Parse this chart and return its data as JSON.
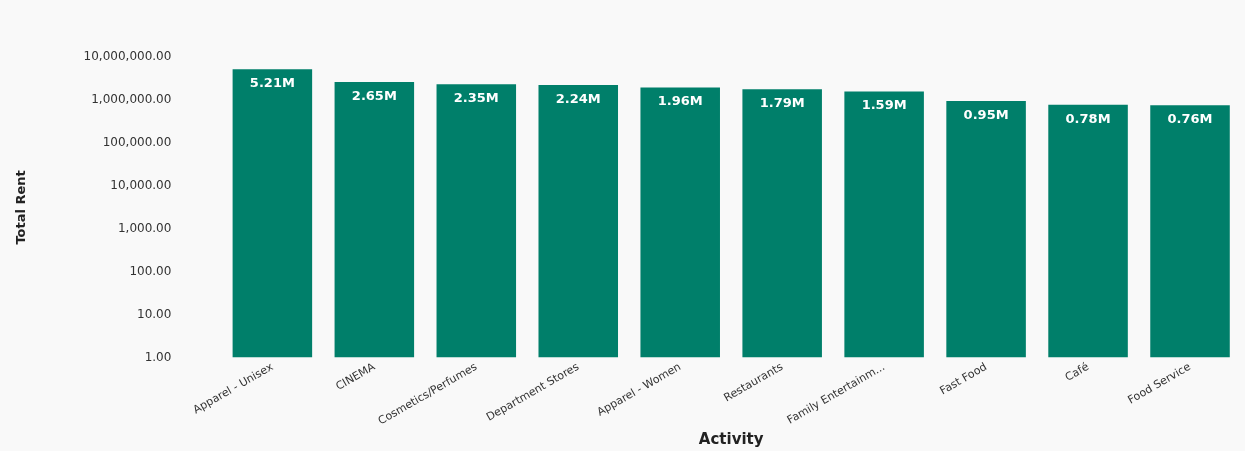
{
  "chart_data": {
    "type": "bar",
    "xlabel": "Activity",
    "ylabel": "Total Rent",
    "categories": [
      "Apparel - Unisex",
      "CINEMA",
      "Cosmetics/Perfumes",
      "Department Stores",
      "Apparel - Women",
      "Restaurants",
      "Family Entertainm...",
      "Fast Food",
      "Café",
      "Food Service"
    ],
    "values": [
      5210000,
      2650000,
      2350000,
      2240000,
      1960000,
      1790000,
      1590000,
      950000,
      780000,
      760000
    ],
    "value_labels": [
      "5.21M",
      "2.65M",
      "2.35M",
      "2.24M",
      "1.96M",
      "1.79M",
      "1.59M",
      "0.95M",
      "0.78M",
      "0.76M"
    ],
    "color": "#007f6a",
    "log": "y",
    "ylim": [
      1,
      10000000
    ],
    "yticks": [
      {
        "value": 1,
        "label": "1.00"
      },
      {
        "value": 10,
        "label": "10.00"
      },
      {
        "value": 100,
        "label": "100.00"
      },
      {
        "value": 1000,
        "label": "1,000.00"
      },
      {
        "value": 10000,
        "label": "10,000.00"
      },
      {
        "value": 100000,
        "label": "100,000.00"
      },
      {
        "value": 1000000,
        "label": "1,000,000.00"
      },
      {
        "value": 10000000,
        "label": "10,000,000.00"
      }
    ],
    "grid": false,
    "legend": false
  }
}
